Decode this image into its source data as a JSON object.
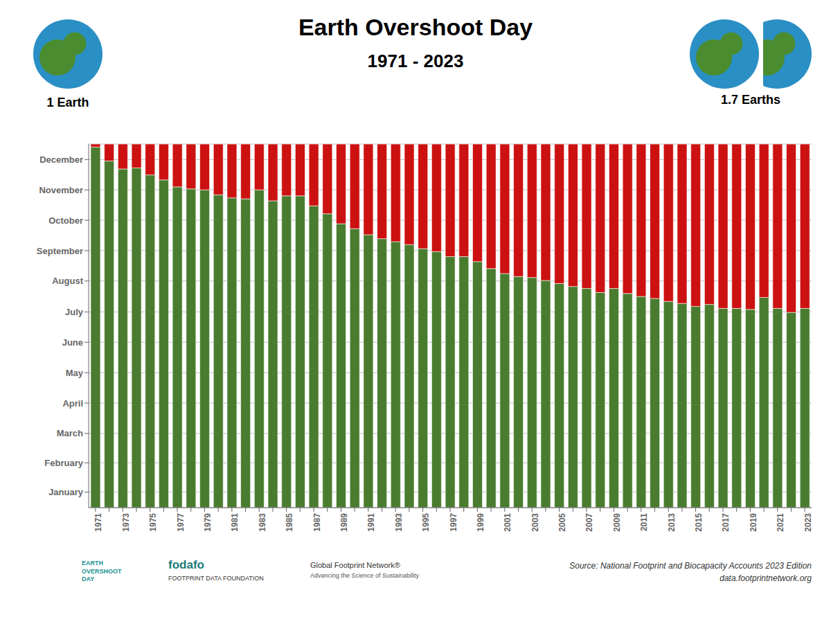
{
  "chart_data": {
    "type": "bar",
    "title": "Earth Overshoot Day",
    "subtitle": "1971 - 2023",
    "stacked": true,
    "grid": true,
    "categories": [
      "1971",
      null,
      "1973",
      null,
      "1975",
      null,
      "1977",
      null,
      "1979",
      null,
      "1981",
      null,
      "1983",
      null,
      "1985",
      null,
      "1987",
      null,
      "1989",
      null,
      "1991",
      null,
      "1993",
      null,
      "1995",
      null,
      "1997",
      null,
      "1999",
      null,
      "2001",
      null,
      "2003",
      null,
      "2005",
      null,
      "2007",
      null,
      "2009",
      null,
      "2011",
      null,
      "2013",
      null,
      "2015",
      null,
      "2017",
      null,
      "2019",
      null,
      "2021",
      null,
      "2023"
    ],
    "series": [
      {
        "color": "#4a7c2f",
        "values": [
          362,
          348,
          340,
          341,
          334,
          329,
          322,
          320,
          319,
          314,
          311,
          310,
          319,
          308,
          313,
          313,
          303,
          295,
          285,
          280,
          274,
          270,
          267,
          264,
          260,
          257,
          252,
          252,
          247,
          240,
          235,
          232,
          231,
          228,
          225,
          222,
          220,
          216,
          220,
          215,
          212,
          210,
          207,
          205,
          202,
          204,
          200,
          200,
          199,
          211,
          200,
          196,
          200
        ]
      },
      {
        "color": "#cc1111",
        "values": [
          3,
          17,
          25,
          24,
          31,
          36,
          43,
          45,
          46,
          51,
          54,
          55,
          46,
          57,
          52,
          52,
          62,
          70,
          80,
          85,
          91,
          95,
          98,
          101,
          105,
          108,
          113,
          113,
          118,
          125,
          130,
          133,
          134,
          137,
          140,
          143,
          145,
          149,
          145,
          150,
          153,
          155,
          158,
          160,
          163,
          161,
          165,
          165,
          166,
          154,
          165,
          169,
          165
        ]
      }
    ],
    "ylim": [
      0,
      365
    ],
    "yticks": [
      {
        "value": 15.5,
        "label": "January"
      },
      {
        "value": 45,
        "label": "February"
      },
      {
        "value": 74.5,
        "label": "March"
      },
      {
        "value": 105,
        "label": "April"
      },
      {
        "value": 135.5,
        "label": "May"
      },
      {
        "value": 166,
        "label": "June"
      },
      {
        "value": 196.5,
        "label": "July"
      },
      {
        "value": 227.5,
        "label": "August"
      },
      {
        "value": 258,
        "label": "September"
      },
      {
        "value": 288.5,
        "label": "October"
      },
      {
        "value": 319,
        "label": "November"
      },
      {
        "value": 349.5,
        "label": "December"
      }
    ],
    "annotations": [
      "1 Earth",
      "1.7 Earths",
      "Source: National Footprint and Biocapacity Accounts 2023 Edition\ndata.footprintnetwork.org",
      "EARTH\nOVERSHOOT\nDAY",
      "fodafo",
      "FOOTPRINT DATA FOUNDATION",
      "Global Footprint Network®",
      "Advancing the Science of Sustainability"
    ]
  }
}
